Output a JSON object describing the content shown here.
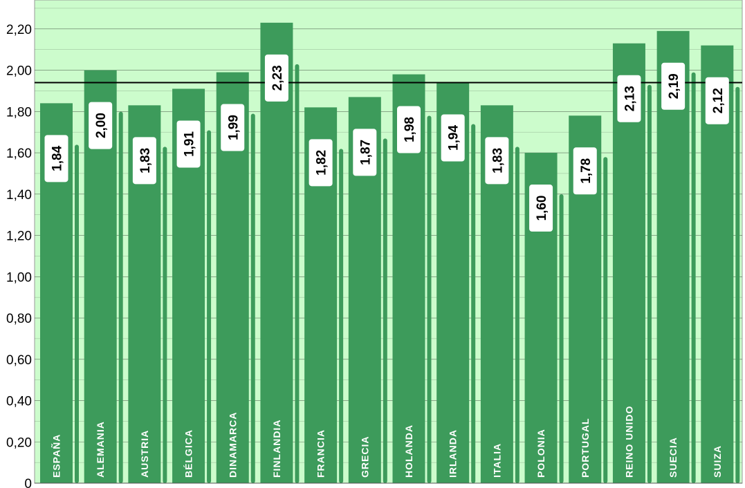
{
  "chart_data": {
    "type": "bar",
    "title": "",
    "xlabel": "",
    "ylabel": "",
    "categories": [
      "ESPAÑA",
      "ALEMANIA",
      "AUSTRIA",
      "BÉLGICA",
      "DINAMARCA",
      "FINLANDIA",
      "FRANCIA",
      "GRECIA",
      "HOLANDA",
      "IRLANDA",
      "ITALIA",
      "POLONIA",
      "PORTUGAL",
      "REINO UNIDO",
      "SUECIA",
      "SUIZA"
    ],
    "values": [
      1.84,
      2.0,
      1.83,
      1.91,
      1.99,
      2.23,
      1.82,
      1.87,
      1.98,
      1.94,
      1.83,
      1.6,
      1.78,
      2.13,
      2.19,
      2.12
    ],
    "value_labels": [
      "1,84",
      "2,00",
      "1,83",
      "1,91",
      "1,99",
      "2,23",
      "1,82",
      "1,87",
      "1,98",
      "1,94",
      "1,83",
      "1,60",
      "1,78",
      "2,13",
      "2,19",
      "2,12"
    ],
    "reference_line": 1.94,
    "ylim": [
      0,
      2.34
    ],
    "y_ticks": [
      0,
      0.2,
      0.4,
      0.6,
      0.8,
      1.0,
      1.2,
      1.4,
      1.6,
      1.8,
      2.0,
      2.2
    ],
    "y_tick_labels": [
      "0",
      "0,20",
      "0,40",
      "0,60",
      "0,80",
      "1,00",
      "1,20",
      "1,40",
      "1,60",
      "1,80",
      "2,00",
      "2,20"
    ],
    "grid": true,
    "legend": "none",
    "colors": {
      "background": "#ccfccc",
      "bar": "#3d9b5b",
      "label_box": "#ffffff",
      "gridline": "#000000"
    }
  }
}
